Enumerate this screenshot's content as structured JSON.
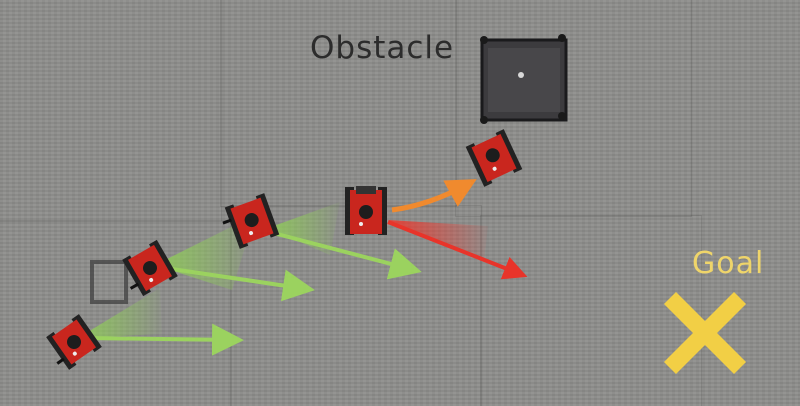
{
  "labels": {
    "obstacle": "Obstacle",
    "goal": "Goal"
  },
  "colors": {
    "floor": "#8e8e8c",
    "robot_body": "#c9261e",
    "green_arrow": "#8fcf55",
    "orange_arrow": "#f08a2e",
    "red_arrow": "#e8342a",
    "goal_marker": "#f2cf45",
    "obstacle": "#3a3a3c"
  },
  "icons": {
    "goal_marker": "x-mark-icon"
  }
}
